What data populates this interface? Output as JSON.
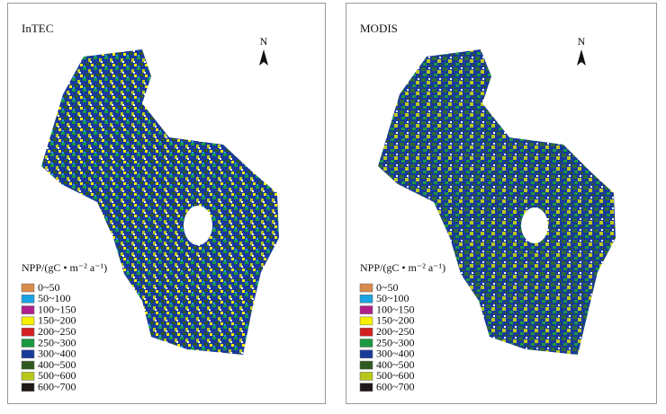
{
  "panels": [
    {
      "title": "InTEC",
      "north": "N",
      "legend": {
        "title": "NPP/(gC • m⁻² a⁻¹)",
        "items": [
          {
            "label": "0~50",
            "color": "#d98c4a"
          },
          {
            "label": "50~100",
            "color": "#1aa3e0"
          },
          {
            "label": "100~150",
            "color": "#b0208a"
          },
          {
            "label": "150~200",
            "color": "#f5f000"
          },
          {
            "label": "200~250",
            "color": "#d42020"
          },
          {
            "label": "250~300",
            "color": "#1a9a40"
          },
          {
            "label": "300~400",
            "color": "#1a3a9a"
          },
          {
            "label": "400~500",
            "color": "#2e5a20"
          },
          {
            "label": "500~600",
            "color": "#b8c81a"
          },
          {
            "label": "600~700",
            "color": "#201818"
          }
        ]
      }
    },
    {
      "title": "MODIS",
      "north": "N",
      "legend": {
        "title": "NPP/(gC • m⁻² a⁻¹)",
        "items": [
          {
            "label": "0~50",
            "color": "#d98c4a"
          },
          {
            "label": "50~100",
            "color": "#1aa3e0"
          },
          {
            "label": "100~150",
            "color": "#b0208a"
          },
          {
            "label": "150~200",
            "color": "#f5f000"
          },
          {
            "label": "200~250",
            "color": "#d42020"
          },
          {
            "label": "250~300",
            "color": "#1a9a40"
          },
          {
            "label": "300~400",
            "color": "#1a3a9a"
          },
          {
            "label": "400~500",
            "color": "#2e5a20"
          },
          {
            "label": "500~600",
            "color": "#b8c81a"
          },
          {
            "label": "600~700",
            "color": "#201818"
          }
        ]
      }
    }
  ]
}
